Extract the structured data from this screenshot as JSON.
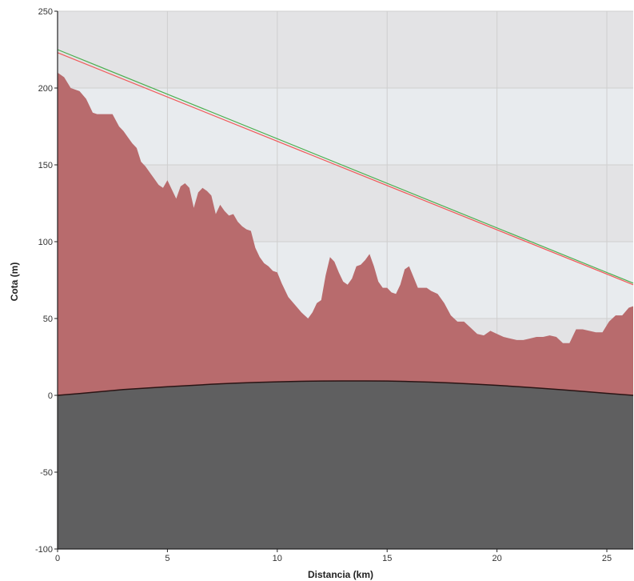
{
  "chart_data": {
    "type": "area",
    "xlabel": "Distancia (km)",
    "ylabel": "Cota (m)",
    "xlim": [
      0,
      26.2
    ],
    "ylim": [
      -100,
      250
    ],
    "x_ticks": [
      0,
      5,
      10,
      15,
      20,
      25
    ],
    "y_ticks": [
      -100,
      -50,
      0,
      50,
      100,
      150,
      200,
      250
    ],
    "grid": true,
    "colors": {
      "terrain": "#b86b6d",
      "earth": "#5f5f60",
      "line_green": "#4caf50",
      "line_red": "#f05a5a",
      "band_light": "#e8ebee",
      "band_dark": "#e3e3e5",
      "grid": "#cfcfcf"
    },
    "series": [
      {
        "kind": "terrain",
        "x": [
          0,
          0.3,
          0.6,
          1.0,
          1.3,
          1.6,
          1.8,
          2.0,
          2.5,
          2.8,
          3.0,
          3.2,
          3.4,
          3.6,
          3.8,
          4.0,
          4.2,
          4.4,
          4.6,
          4.8,
          5.0,
          5.2,
          5.4,
          5.6,
          5.8,
          6.0,
          6.2,
          6.4,
          6.6,
          6.8,
          7.0,
          7.2,
          7.4,
          7.6,
          7.8,
          8.0,
          8.2,
          8.4,
          8.6,
          8.8,
          9.0,
          9.2,
          9.4,
          9.6,
          9.8,
          10.0,
          10.2,
          10.5,
          10.8,
          11.1,
          11.4,
          11.6,
          11.8,
          12.0,
          12.2,
          12.4,
          12.6,
          12.8,
          13.0,
          13.2,
          13.4,
          13.6,
          13.8,
          14.0,
          14.2,
          14.4,
          14.6,
          14.8,
          15.0,
          15.2,
          15.4,
          15.6,
          15.8,
          16.0,
          16.2,
          16.4,
          16.6,
          16.8,
          17.0,
          17.3,
          17.6,
          17.9,
          18.2,
          18.5,
          18.8,
          19.1,
          19.4,
          19.7,
          20.0,
          20.3,
          20.6,
          20.9,
          21.2,
          21.5,
          21.8,
          22.1,
          22.4,
          22.7,
          23.0,
          23.3,
          23.6,
          23.9,
          24.2,
          24.5,
          24.8,
          25.1,
          25.4,
          25.7,
          26.0,
          26.2
        ],
        "y": [
          210,
          207,
          200,
          198,
          193,
          184,
          183,
          183,
          183,
          175,
          172,
          168,
          164,
          161,
          152,
          149,
          145,
          141,
          137,
          135,
          140,
          134,
          128,
          136,
          138,
          135,
          122,
          132,
          135,
          133,
          130,
          118,
          124,
          120,
          117,
          118,
          113,
          110,
          108,
          107,
          96,
          90,
          86,
          84,
          81,
          80,
          73,
          64,
          59,
          54,
          50,
          54,
          60,
          62,
          78,
          90,
          87,
          80,
          74,
          72,
          76,
          84,
          85,
          88,
          92,
          84,
          74,
          70,
          70,
          67,
          66,
          72,
          82,
          84,
          77,
          70,
          70,
          70,
          68,
          66,
          60,
          52,
          48,
          48,
          44,
          40,
          39,
          42,
          40,
          38,
          37,
          36,
          36,
          37,
          38,
          38,
          39,
          38,
          34,
          34,
          43,
          43,
          42,
          41,
          41,
          48,
          52,
          52,
          57,
          58
        ]
      },
      {
        "kind": "earth-curvature",
        "x": [
          0,
          1,
          2,
          3,
          4,
          5,
          6,
          7,
          8,
          9,
          10,
          11,
          12,
          13,
          14,
          15,
          16,
          17,
          18,
          19,
          20,
          21,
          22,
          23,
          24,
          25,
          26.2
        ],
        "y": [
          0,
          1.2,
          2.5,
          3.8,
          4.7,
          5.6,
          6.4,
          7.2,
          7.9,
          8.4,
          8.8,
          9.1,
          9.3,
          9.4,
          9.4,
          9.3,
          9.0,
          8.6,
          8.0,
          7.3,
          6.5,
          5.6,
          4.6,
          3.6,
          2.5,
          1.3,
          0
        ]
      },
      {
        "kind": "line-green",
        "x": [
          0,
          26.2
        ],
        "y": [
          225,
          73
        ]
      },
      {
        "kind": "line-red",
        "x": [
          0,
          26.2
        ],
        "y": [
          223,
          72
        ]
      }
    ]
  }
}
